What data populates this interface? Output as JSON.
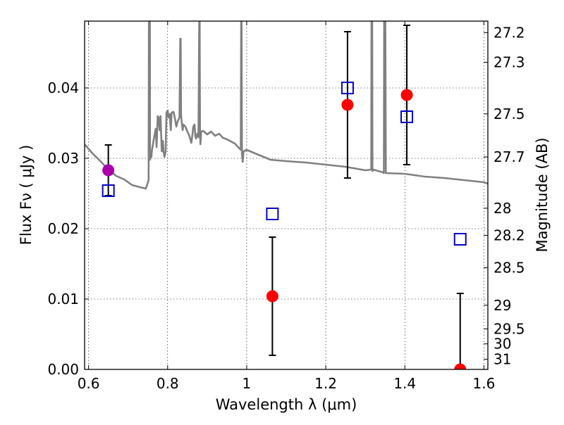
{
  "chart_data": {
    "type": "scatter",
    "xlabel": "Wavelength  λ (μm)",
    "ylabel": "Flux  Fν  ( μJy )",
    "y2label": "Magnitude (AB)",
    "xlim": [
      0.59,
      1.61
    ],
    "ylim": [
      0.0,
      0.0495
    ],
    "grid": true,
    "x_ticks": [
      {
        "value": 0.6,
        "label": "0.6"
      },
      {
        "value": 0.8,
        "label": "0.8"
      },
      {
        "value": 1.0,
        "label": "1"
      },
      {
        "value": 1.2,
        "label": "1.2"
      },
      {
        "value": 1.4,
        "label": "1.4"
      },
      {
        "value": 1.6,
        "label": "1.6"
      }
    ],
    "y_ticks": [
      {
        "value": 0.0,
        "label": "0.00"
      },
      {
        "value": 0.01,
        "label": "0.01"
      },
      {
        "value": 0.02,
        "label": "0.02"
      },
      {
        "value": 0.03,
        "label": "0.03"
      },
      {
        "value": 0.04,
        "label": "0.04"
      }
    ],
    "y2_ticks": [
      {
        "mag": 27.2,
        "label": "27.2"
      },
      {
        "mag": 27.3,
        "label": "27.3"
      },
      {
        "mag": 27.5,
        "label": "27.5"
      },
      {
        "mag": 27.7,
        "label": "27.7"
      },
      {
        "mag": 28.0,
        "label": "28"
      },
      {
        "mag": 28.2,
        "label": "28.2"
      },
      {
        "mag": 28.5,
        "label": "28.5"
      },
      {
        "mag": 29.0,
        "label": "29"
      },
      {
        "mag": 29.5,
        "label": "29.5"
      },
      {
        "mag": 30.0,
        "label": "30"
      },
      {
        "mag": 31.0,
        "label": "31"
      }
    ],
    "series": [
      {
        "kind": "model_spectrum",
        "color": "#808080",
        "x": [
          0.59,
          0.61,
          0.63,
          0.65,
          0.67,
          0.69,
          0.71,
          0.73,
          0.745,
          0.752,
          0.753,
          0.755,
          0.7555,
          0.757,
          0.759,
          0.76,
          0.765,
          0.77,
          0.772,
          0.775,
          0.777,
          0.78,
          0.782,
          0.785,
          0.788,
          0.79,
          0.792,
          0.795,
          0.797,
          0.8,
          0.802,
          0.805,
          0.808,
          0.81,
          0.815,
          0.82,
          0.822,
          0.825,
          0.83,
          0.832,
          0.833,
          0.834,
          0.835,
          0.838,
          0.84,
          0.845,
          0.85,
          0.855,
          0.86,
          0.862,
          0.865,
          0.868,
          0.87,
          0.872,
          0.875,
          0.878,
          0.88,
          0.881,
          0.882,
          0.883,
          0.885,
          0.89,
          0.9,
          0.91,
          0.92,
          0.93,
          0.94,
          0.95,
          0.96,
          0.97,
          0.98,
          0.985,
          0.986,
          0.987,
          0.988,
          0.99,
          0.992,
          1.0,
          1.03,
          1.06,
          1.1,
          1.15,
          1.2,
          1.25,
          1.3,
          1.315,
          1.316,
          1.317,
          1.318,
          1.32,
          1.345,
          1.347,
          1.348,
          1.35,
          1.352,
          1.4,
          1.45,
          1.5,
          1.55,
          1.6,
          1.61
        ],
        "y": [
          0.032,
          0.0307,
          0.0296,
          0.0284,
          0.0275,
          0.027,
          0.0262,
          0.0259,
          0.0257,
          0.0269,
          0.06,
          0.06,
          0.0298,
          0.031,
          0.0302,
          0.031,
          0.0327,
          0.0342,
          0.0316,
          0.036,
          0.0358,
          0.034,
          0.036,
          0.031,
          0.0325,
          0.0308,
          0.0302,
          0.031,
          0.0365,
          0.0368,
          0.0358,
          0.0363,
          0.034,
          0.0365,
          0.0366,
          0.0352,
          0.0345,
          0.0352,
          0.0358,
          0.047,
          0.047,
          0.0362,
          0.0355,
          0.034,
          0.0348,
          0.0345,
          0.0338,
          0.0332,
          0.0322,
          0.033,
          0.0345,
          0.0348,
          0.0332,
          0.0328,
          0.0335,
          0.033,
          0.05,
          0.05,
          0.0335,
          0.032,
          0.0338,
          0.0339,
          0.0334,
          0.0338,
          0.0332,
          0.0335,
          0.0329,
          0.0327,
          0.0324,
          0.0321,
          0.0315,
          0.0312,
          0.05,
          0.05,
          0.0306,
          0.0295,
          0.031,
          0.0312,
          0.0305,
          0.0298,
          0.0296,
          0.0294,
          0.0291,
          0.0288,
          0.0283,
          0.0284,
          0.06,
          0.06,
          0.0282,
          0.0284,
          0.028,
          0.0279,
          0.06,
          0.06,
          0.0279,
          0.0278,
          0.0274,
          0.0272,
          0.0269,
          0.0266,
          0.0264
        ]
      },
      {
        "kind": "observed",
        "marker": "circle",
        "color": "#ff0000",
        "points": [
          {
            "x": 1.065,
            "y": 0.0104,
            "yerr": 0.0084
          },
          {
            "x": 1.255,
            "y": 0.0376,
            "yerr": 0.0104
          },
          {
            "x": 1.405,
            "y": 0.039,
            "yerr": 0.0099
          },
          {
            "x": 1.54,
            "y": 0.0,
            "yerr": 0.0108
          }
        ]
      },
      {
        "kind": "observed",
        "marker": "circle",
        "color": "#aa00aa",
        "points": [
          {
            "x": 0.65,
            "y": 0.0283,
            "yerr": 0.0036
          }
        ]
      },
      {
        "kind": "model_photometry",
        "marker": "square-open",
        "color": "#0000cc",
        "points": [
          {
            "x": 0.65,
            "y": 0.0254
          },
          {
            "x": 1.065,
            "y": 0.0221
          },
          {
            "x": 1.255,
            "y": 0.04
          },
          {
            "x": 1.405,
            "y": 0.0359
          },
          {
            "x": 1.54,
            "y": 0.0185
          }
        ]
      }
    ]
  }
}
